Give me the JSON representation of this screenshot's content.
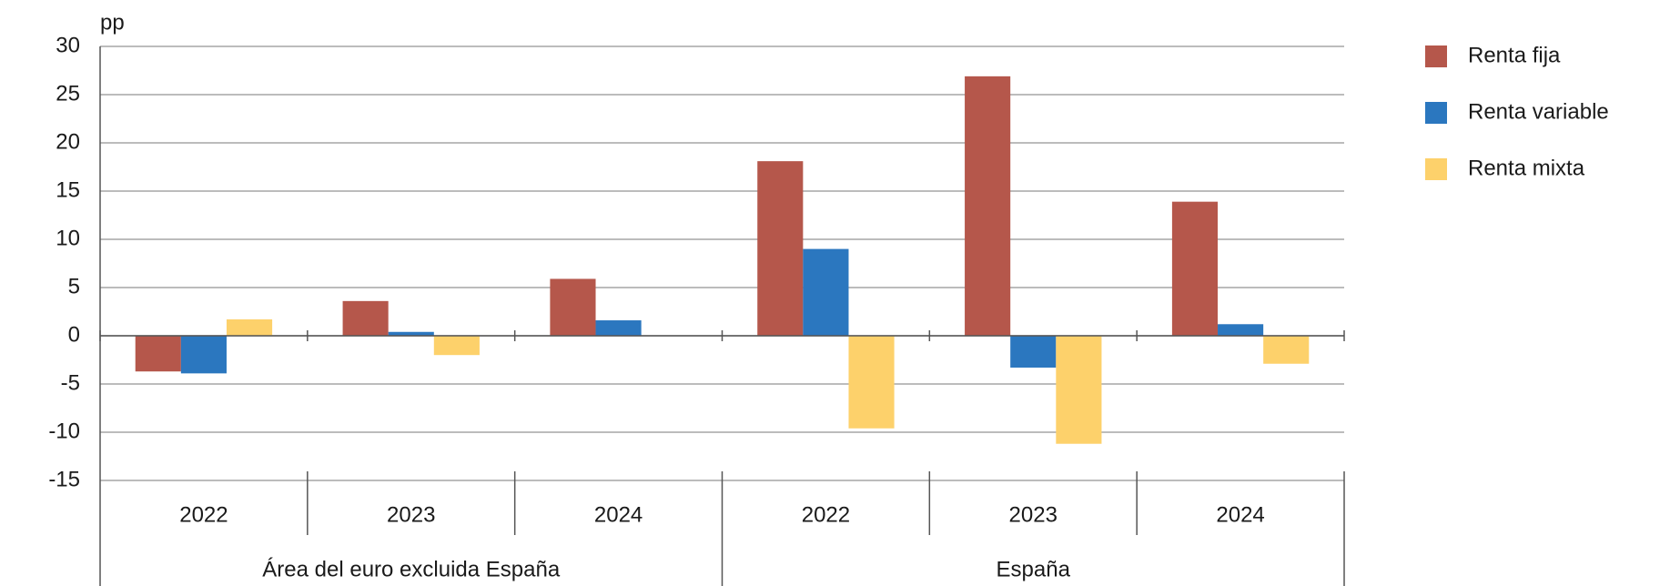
{
  "chart_data": {
    "type": "bar",
    "y_unit_label": "pp",
    "categories": [
      "2022",
      "2023",
      "2024",
      "2022",
      "2023",
      "2024"
    ],
    "groups": [
      "Área del euro excluida España",
      "España"
    ],
    "series": [
      {
        "name": "Renta fija",
        "color": "#b5574b",
        "values": [
          -3.7,
          3.6,
          5.9,
          18.1,
          26.9,
          13.9
        ]
      },
      {
        "name": "Renta variable",
        "color": "#2b77bf",
        "values": [
          -3.9,
          0.4,
          1.6,
          9.0,
          -3.3,
          1.2
        ]
      },
      {
        "name": "Renta mixta",
        "color": "#fdd16b",
        "values": [
          1.7,
          -2.0,
          0,
          -9.6,
          -11.2,
          -2.9
        ]
      }
    ],
    "ylim": [
      -15,
      30
    ],
    "yticks": [
      -15,
      -10,
      -5,
      0,
      5,
      10,
      15,
      20,
      25,
      30
    ],
    "grid": true,
    "legend": "right"
  }
}
